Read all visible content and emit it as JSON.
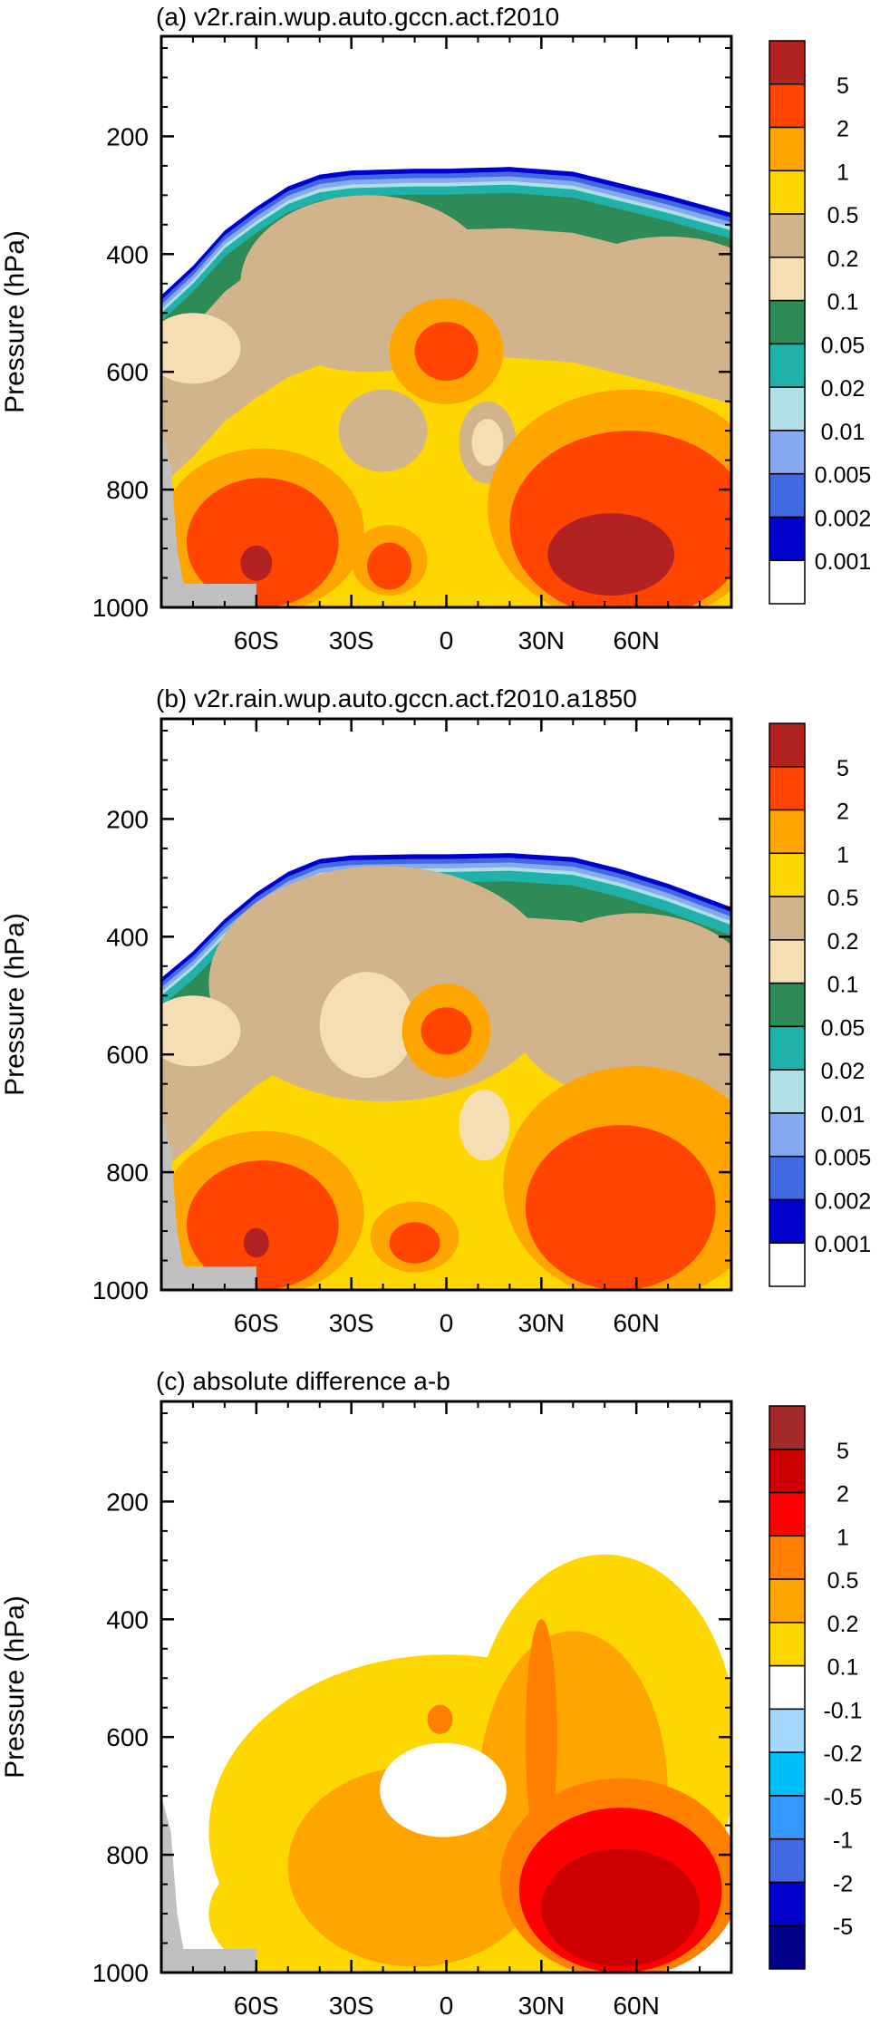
{
  "chart_data": [
    {
      "type": "heatmap",
      "title": "(a) v2r.rain.wup.auto.gccn.act.f2010",
      "xlabel": "",
      "ylabel": "Pressure (hPa)",
      "x_ticks": [
        "60S",
        "30S",
        "0",
        "30N",
        "60N"
      ],
      "x_tick_values": [
        -60,
        -30,
        0,
        30,
        60
      ],
      "xlim": [
        -90,
        90
      ],
      "y_ticks": [
        "200",
        "400",
        "600",
        "800",
        "1000"
      ],
      "y_tick_values": [
        200,
        400,
        600,
        800,
        1000
      ],
      "ylim": [
        1000,
        30
      ],
      "colorbar": {
        "labels": [
          "5",
          "2",
          "1",
          "0.5",
          "0.2",
          "0.1",
          "0.05",
          "0.02",
          "0.01",
          "0.005",
          "0.002",
          "0.001"
        ],
        "colors": [
          "#b22222",
          "#ff4500",
          "#ffa500",
          "#ffd700",
          "#d2b48c",
          "#f5deb3",
          "#2e8b57",
          "#20b2aa",
          "#b0e0e6",
          "#87a9f0",
          "#4169e1",
          "#0000cd",
          "#ffffff"
        ],
        "placement": "right"
      },
      "field": {
        "mode": "cloud",
        "cloud_top": [
          [
            -90,
            470
          ],
          [
            -80,
            420
          ],
          [
            -70,
            360
          ],
          [
            -60,
            320
          ],
          [
            -50,
            285
          ],
          [
            -40,
            265
          ],
          [
            -30,
            258
          ],
          [
            -10,
            255
          ],
          [
            0,
            255
          ],
          [
            20,
            252
          ],
          [
            40,
            260
          ],
          [
            55,
            280
          ],
          [
            70,
            300
          ],
          [
            90,
            330
          ]
        ],
        "bands": [
          {
            "value": 0.001,
            "depth": 8
          },
          {
            "value": 0.002,
            "depth": 8
          },
          {
            "value": 0.005,
            "depth": 8
          },
          {
            "value": 0.01,
            "depth": 6
          },
          {
            "value": 0.02,
            "depth": 14
          },
          {
            "value": 0.05,
            "depth": 60
          }
        ],
        "base_value": 0.5,
        "blobs": [
          {
            "lat": -25,
            "p": 450,
            "rx": 40,
            "ry": 150,
            "value": 0.2
          },
          {
            "lat": 70,
            "p": 450,
            "rx": 30,
            "ry": 80,
            "value": 0.2
          },
          {
            "lat": -80,
            "p": 560,
            "rx": 15,
            "ry": 60,
            "value": 0.1
          },
          {
            "lat": -20,
            "p": 700,
            "rx": 14,
            "ry": 70,
            "value": 0.2
          },
          {
            "lat": 13,
            "p": 720,
            "rx": 9,
            "ry": 70,
            "value": 0.2
          },
          {
            "lat": 13,
            "p": 720,
            "rx": 5,
            "ry": 40,
            "value": 0.1
          },
          {
            "lat": 0,
            "p": 565,
            "rx": 18,
            "ry": 90,
            "value": 1
          },
          {
            "lat": 0,
            "p": 565,
            "rx": 10,
            "ry": 50,
            "value": 2
          },
          {
            "lat": -58,
            "p": 870,
            "rx": 32,
            "ry": 140,
            "value": 1
          },
          {
            "lat": -58,
            "p": 890,
            "rx": 24,
            "ry": 110,
            "value": 2
          },
          {
            "lat": -60,
            "p": 925,
            "rx": 5,
            "ry": 30,
            "value": 5
          },
          {
            "lat": -18,
            "p": 920,
            "rx": 12,
            "ry": 60,
            "value": 1
          },
          {
            "lat": -18,
            "p": 930,
            "rx": 7,
            "ry": 40,
            "value": 2
          },
          {
            "lat": 58,
            "p": 830,
            "rx": 45,
            "ry": 200,
            "value": 1
          },
          {
            "lat": 58,
            "p": 860,
            "rx": 38,
            "ry": 160,
            "value": 2
          },
          {
            "lat": 52,
            "p": 910,
            "rx": 20,
            "ry": 70,
            "value": 5
          }
        ]
      }
    },
    {
      "type": "heatmap",
      "title": "(b) v2r.rain.wup.auto.gccn.act.f2010.a1850",
      "xlabel": "",
      "ylabel": "Pressure (hPa)",
      "x_ticks": [
        "60S",
        "30S",
        "0",
        "30N",
        "60N"
      ],
      "x_tick_values": [
        -60,
        -30,
        0,
        30,
        60
      ],
      "xlim": [
        -90,
        90
      ],
      "y_ticks": [
        "200",
        "400",
        "600",
        "800",
        "1000"
      ],
      "y_tick_values": [
        200,
        400,
        600,
        800,
        1000
      ],
      "ylim": [
        1000,
        30
      ],
      "colorbar": {
        "labels": [
          "5",
          "2",
          "1",
          "0.5",
          "0.2",
          "0.1",
          "0.05",
          "0.02",
          "0.01",
          "0.005",
          "0.002",
          "0.001"
        ],
        "colors": [
          "#b22222",
          "#ff4500",
          "#ffa500",
          "#ffd700",
          "#d2b48c",
          "#f5deb3",
          "#2e8b57",
          "#20b2aa",
          "#b0e0e6",
          "#87a9f0",
          "#4169e1",
          "#0000cd",
          "#ffffff"
        ],
        "placement": "right"
      },
      "field": {
        "mode": "cloud",
        "cloud_top": [
          [
            -90,
            470
          ],
          [
            -80,
            425
          ],
          [
            -70,
            370
          ],
          [
            -60,
            325
          ],
          [
            -50,
            290
          ],
          [
            -40,
            268
          ],
          [
            -30,
            262
          ],
          [
            -10,
            260
          ],
          [
            0,
            260
          ],
          [
            20,
            258
          ],
          [
            40,
            265
          ],
          [
            55,
            285
          ],
          [
            70,
            310
          ],
          [
            90,
            350
          ]
        ],
        "bands": [
          {
            "value": 0.001,
            "depth": 8
          },
          {
            "value": 0.002,
            "depth": 8
          },
          {
            "value": 0.005,
            "depth": 8
          },
          {
            "value": 0.01,
            "depth": 6
          },
          {
            "value": 0.02,
            "depth": 18
          },
          {
            "value": 0.05,
            "depth": 60
          }
        ],
        "base_value": 0.5,
        "blobs": [
          {
            "lat": -20,
            "p": 480,
            "rx": 55,
            "ry": 200,
            "value": 0.2
          },
          {
            "lat": 60,
            "p": 520,
            "rx": 40,
            "ry": 160,
            "value": 0.2
          },
          {
            "lat": -80,
            "p": 560,
            "rx": 15,
            "ry": 60,
            "value": 0.1
          },
          {
            "lat": -25,
            "p": 550,
            "rx": 15,
            "ry": 90,
            "value": 0.1
          },
          {
            "lat": 12,
            "p": 720,
            "rx": 8,
            "ry": 60,
            "value": 0.1
          },
          {
            "lat": 0,
            "p": 560,
            "rx": 14,
            "ry": 80,
            "value": 1
          },
          {
            "lat": 0,
            "p": 560,
            "rx": 8,
            "ry": 40,
            "value": 2
          },
          {
            "lat": -58,
            "p": 870,
            "rx": 32,
            "ry": 140,
            "value": 1
          },
          {
            "lat": -58,
            "p": 890,
            "rx": 24,
            "ry": 110,
            "value": 2
          },
          {
            "lat": -60,
            "p": 920,
            "rx": 4,
            "ry": 25,
            "value": 5
          },
          {
            "lat": -10,
            "p": 910,
            "rx": 14,
            "ry": 60,
            "value": 1
          },
          {
            "lat": -10,
            "p": 920,
            "rx": 8,
            "ry": 35,
            "value": 2
          },
          {
            "lat": 60,
            "p": 820,
            "rx": 42,
            "ry": 200,
            "value": 1
          },
          {
            "lat": 55,
            "p": 860,
            "rx": 30,
            "ry": 140,
            "value": 2
          }
        ]
      }
    },
    {
      "type": "heatmap",
      "title": "(c) absolute difference a-b",
      "xlabel": "",
      "ylabel": "Pressure (hPa)",
      "x_ticks": [
        "60S",
        "30S",
        "0",
        "30N",
        "60N"
      ],
      "x_tick_values": [
        -60,
        -30,
        0,
        30,
        60
      ],
      "xlim": [
        -90,
        90
      ],
      "y_ticks": [
        "200",
        "400",
        "600",
        "800",
        "1000"
      ],
      "y_tick_values": [
        200,
        400,
        600,
        800,
        1000
      ],
      "ylim": [
        1000,
        30
      ],
      "colorbar": {
        "labels": [
          "5",
          "2",
          "1",
          "0.5",
          "0.2",
          "0.1",
          "-0.1",
          "-0.2",
          "-0.5",
          "-1",
          "-2",
          "-5"
        ],
        "colors": [
          "#a52a2a",
          "#cc0000",
          "#ff0000",
          "#ff7f00",
          "#ffa500",
          "#ffd700",
          "#ffffff",
          "#a6d8ff",
          "#00bfff",
          "#3399ff",
          "#4169e1",
          "#0000cd",
          "#00008b"
        ],
        "placement": "right"
      },
      "field": {
        "mode": "diff",
        "blobs": [
          {
            "lat": 0,
            "p": 760,
            "rx": 75,
            "ry": 300,
            "value": 0.1
          },
          {
            "lat": 50,
            "p": 620,
            "rx": 42,
            "ry": 330,
            "value": 0.1
          },
          {
            "lat": -40,
            "p": 900,
            "rx": 35,
            "ry": 120,
            "value": 0.1
          },
          {
            "lat": -10,
            "p": 820,
            "rx": 40,
            "ry": 170,
            "value": 0.2
          },
          {
            "lat": 40,
            "p": 700,
            "rx": 30,
            "ry": 280,
            "value": 0.2
          },
          {
            "lat": 30,
            "p": 600,
            "rx": 5,
            "ry": 200,
            "value": 0.5
          },
          {
            "lat": 55,
            "p": 840,
            "rx": 38,
            "ry": 170,
            "value": 0.5
          },
          {
            "lat": 55,
            "p": 860,
            "rx": 32,
            "ry": 140,
            "value": 1
          },
          {
            "lat": 55,
            "p": 890,
            "rx": 25,
            "ry": 100,
            "value": 2
          },
          {
            "lat": -1,
            "p": 690,
            "rx": 20,
            "ry": 80,
            "value": -0.1
          },
          {
            "lat": -2,
            "p": 570,
            "rx": 4,
            "ry": 25,
            "value": 0.5
          }
        ]
      }
    }
  ]
}
